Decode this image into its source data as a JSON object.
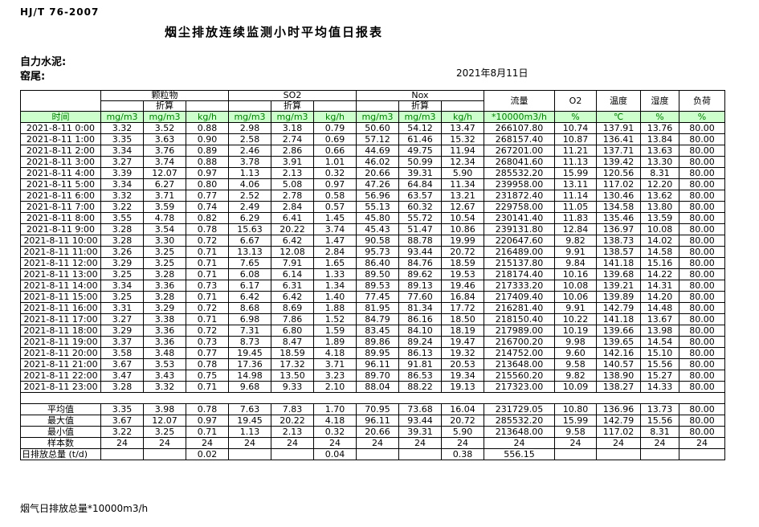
{
  "page": {
    "standard_code": "HJ/T 76-2007",
    "title": "烟尘排放连续监测小时平均值日报表",
    "company_label": "自力水泥:",
    "site_label": "窑尾:",
    "date": "2021年8月11日",
    "footer_note": "烟气日排放总量*10000m3/h"
  },
  "colors": {
    "header_bg_green": "#ccffcc",
    "header_text_green": "#008000",
    "border": "#000000"
  },
  "table": {
    "time_header": "时间",
    "converted_label": "折算",
    "groups": [
      {
        "label": "颗粒物"
      },
      {
        "label": "SO2"
      },
      {
        "label": "Nox"
      }
    ],
    "scalars": [
      {
        "label": "流量"
      },
      {
        "label": "O2"
      },
      {
        "label": "温度"
      },
      {
        "label": "湿度"
      },
      {
        "label": "负荷"
      }
    ],
    "units": [
      "mg/m3",
      "mg/m3",
      "kg/h",
      "mg/m3",
      "mg/m3",
      "kg/h",
      "mg/m3",
      "mg/m3",
      "kg/h",
      "*10000m3/h",
      "%",
      "℃",
      "%",
      "%"
    ],
    "rows": [
      {
        "time": "2021-8-11 0:00",
        "values": [
          "3.32",
          "3.52",
          "0.88",
          "2.98",
          "3.18",
          "0.79",
          "50.60",
          "54.12",
          "13.47",
          "266107.80",
          "10.74",
          "137.91",
          "13.76",
          "80.00"
        ]
      },
      {
        "time": "2021-8-11 1:00",
        "values": [
          "3.35",
          "3.63",
          "0.90",
          "2.58",
          "2.74",
          "0.69",
          "57.12",
          "61.46",
          "15.32",
          "268157.40",
          "10.87",
          "136.41",
          "13.84",
          "80.00"
        ]
      },
      {
        "time": "2021-8-11 2:00",
        "values": [
          "3.34",
          "3.76",
          "0.89",
          "2.46",
          "2.86",
          "0.66",
          "44.69",
          "49.75",
          "11.94",
          "267201.00",
          "11.21",
          "137.71",
          "13.63",
          "80.00"
        ]
      },
      {
        "time": "2021-8-11 3:00",
        "values": [
          "3.27",
          "3.74",
          "0.88",
          "3.78",
          "3.91",
          "1.01",
          "46.02",
          "50.99",
          "12.34",
          "268041.60",
          "11.13",
          "139.42",
          "13.30",
          "80.00"
        ]
      },
      {
        "time": "2021-8-11 4:00",
        "values": [
          "3.39",
          "12.07",
          "0.97",
          "1.13",
          "2.13",
          "0.32",
          "20.66",
          "39.31",
          "5.90",
          "285532.20",
          "15.99",
          "120.56",
          "8.31",
          "80.00"
        ]
      },
      {
        "time": "2021-8-11 5:00",
        "values": [
          "3.34",
          "6.27",
          "0.80",
          "4.06",
          "5.08",
          "0.97",
          "47.26",
          "64.84",
          "11.34",
          "239958.00",
          "13.11",
          "117.02",
          "12.20",
          "80.00"
        ]
      },
      {
        "time": "2021-8-11 6:00",
        "values": [
          "3.32",
          "3.71",
          "0.77",
          "2.52",
          "2.78",
          "0.58",
          "56.96",
          "63.57",
          "13.21",
          "231872.40",
          "11.14",
          "130.46",
          "13.62",
          "80.00"
        ]
      },
      {
        "time": "2021-8-11 7:00",
        "values": [
          "3.22",
          "3.59",
          "0.74",
          "2.49",
          "2.84",
          "0.57",
          "55.13",
          "60.32",
          "12.67",
          "229758.00",
          "11.05",
          "134.58",
          "13.80",
          "80.00"
        ]
      },
      {
        "time": "2021-8-11 8:00",
        "values": [
          "3.55",
          "4.78",
          "0.82",
          "6.29",
          "6.41",
          "1.45",
          "45.80",
          "55.72",
          "10.54",
          "230141.40",
          "11.83",
          "135.46",
          "13.59",
          "80.00"
        ]
      },
      {
        "time": "2021-8-11 9:00",
        "values": [
          "3.28",
          "3.54",
          "0.78",
          "15.63",
          "20.22",
          "3.74",
          "45.43",
          "51.47",
          "10.86",
          "239131.80",
          "12.84",
          "136.97",
          "10.08",
          "80.00"
        ]
      },
      {
        "time": "2021-8-11 10:00",
        "values": [
          "3.28",
          "3.30",
          "0.72",
          "6.67",
          "6.42",
          "1.47",
          "90.58",
          "88.78",
          "19.99",
          "220647.60",
          "9.82",
          "138.73",
          "14.02",
          "80.00"
        ]
      },
      {
        "time": "2021-8-11 11:00",
        "values": [
          "3.26",
          "3.25",
          "0.71",
          "13.13",
          "12.08",
          "2.84",
          "95.73",
          "93.44",
          "20.72",
          "216489.00",
          "9.91",
          "138.57",
          "14.58",
          "80.00"
        ]
      },
      {
        "time": "2021-8-11 12:00",
        "values": [
          "3.29",
          "3.25",
          "0.71",
          "7.65",
          "7.91",
          "1.65",
          "86.40",
          "84.76",
          "18.59",
          "215137.80",
          "9.84",
          "141.18",
          "15.16",
          "80.00"
        ]
      },
      {
        "time": "2021-8-11 13:00",
        "values": [
          "3.25",
          "3.28",
          "0.71",
          "6.08",
          "6.14",
          "1.33",
          "89.50",
          "89.62",
          "19.53",
          "218174.40",
          "10.16",
          "139.68",
          "14.22",
          "80.00"
        ]
      },
      {
        "time": "2021-8-11 14:00",
        "values": [
          "3.34",
          "3.36",
          "0.73",
          "6.17",
          "6.31",
          "1.34",
          "89.53",
          "89.13",
          "19.46",
          "217333.20",
          "10.08",
          "139.21",
          "14.31",
          "80.00"
        ]
      },
      {
        "time": "2021-8-11 15:00",
        "values": [
          "3.25",
          "3.28",
          "0.71",
          "6.42",
          "6.42",
          "1.40",
          "77.45",
          "77.60",
          "16.84",
          "217409.40",
          "10.06",
          "139.89",
          "14.20",
          "80.00"
        ]
      },
      {
        "time": "2021-8-11 16:00",
        "values": [
          "3.31",
          "3.29",
          "0.72",
          "8.68",
          "8.69",
          "1.88",
          "81.95",
          "81.34",
          "17.72",
          "216281.40",
          "9.91",
          "142.79",
          "14.48",
          "80.00"
        ]
      },
      {
        "time": "2021-8-11 17:00",
        "values": [
          "3.27",
          "3.38",
          "0.71",
          "6.98",
          "7.86",
          "1.52",
          "84.79",
          "86.16",
          "18.50",
          "218150.40",
          "10.22",
          "141.18",
          "13.67",
          "80.00"
        ]
      },
      {
        "time": "2021-8-11 18:00",
        "values": [
          "3.29",
          "3.36",
          "0.72",
          "7.31",
          "6.80",
          "1.59",
          "83.45",
          "84.10",
          "18.19",
          "217989.00",
          "10.19",
          "139.66",
          "13.98",
          "80.00"
        ]
      },
      {
        "time": "2021-8-11 19:00",
        "values": [
          "3.37",
          "3.36",
          "0.73",
          "8.73",
          "8.47",
          "1.89",
          "89.86",
          "89.24",
          "19.47",
          "216700.20",
          "9.98",
          "139.65",
          "14.54",
          "80.00"
        ]
      },
      {
        "time": "2021-8-11 20:00",
        "values": [
          "3.58",
          "3.48",
          "0.77",
          "19.45",
          "18.59",
          "4.18",
          "89.95",
          "86.13",
          "19.32",
          "214752.00",
          "9.60",
          "142.16",
          "15.10",
          "80.00"
        ]
      },
      {
        "time": "2021-8-11 21:00",
        "values": [
          "3.67",
          "3.53",
          "0.78",
          "17.36",
          "17.32",
          "3.71",
          "96.11",
          "91.81",
          "20.53",
          "213648.00",
          "9.58",
          "140.57",
          "15.56",
          "80.00"
        ]
      },
      {
        "time": "2021-8-11 22:00",
        "values": [
          "3.47",
          "3.43",
          "0.75",
          "14.98",
          "13.50",
          "3.23",
          "89.70",
          "86.53",
          "19.34",
          "215560.20",
          "9.82",
          "138.90",
          "15.27",
          "80.00"
        ]
      },
      {
        "time": "2021-8-11 23:00",
        "values": [
          "3.28",
          "3.32",
          "0.71",
          "9.68",
          "9.33",
          "2.10",
          "88.04",
          "88.22",
          "19.13",
          "217323.00",
          "10.09",
          "138.27",
          "14.33",
          "80.00"
        ]
      }
    ],
    "summary": [
      {
        "label": "平均值",
        "values": [
          "3.35",
          "3.98",
          "0.78",
          "7.63",
          "7.83",
          "1.70",
          "70.95",
          "73.68",
          "16.04",
          "231729.05",
          "10.80",
          "136.96",
          "13.73",
          "80.00"
        ]
      },
      {
        "label": "最大值",
        "values": [
          "3.67",
          "12.07",
          "0.97",
          "19.45",
          "20.22",
          "4.18",
          "96.11",
          "93.44",
          "20.72",
          "285532.20",
          "15.99",
          "142.79",
          "15.56",
          "80.00"
        ]
      },
      {
        "label": "最小值",
        "values": [
          "3.22",
          "3.25",
          "0.71",
          "1.13",
          "2.13",
          "0.32",
          "20.66",
          "39.31",
          "5.90",
          "213648.00",
          "9.58",
          "117.02",
          "8.31",
          "80.00"
        ]
      },
      {
        "label": "样本数",
        "values": [
          "24",
          "24",
          "24",
          "24",
          "24",
          "24",
          "24",
          "24",
          "24",
          "24",
          "24",
          "24",
          "24",
          "24"
        ]
      },
      {
        "label": "日排放总量 (t/d)",
        "label_align": "left",
        "values": [
          "",
          "",
          "0.02",
          "",
          "",
          "0.04",
          "",
          "",
          "0.38",
          "556.15",
          "",
          "",
          "",
          ""
        ]
      }
    ]
  }
}
